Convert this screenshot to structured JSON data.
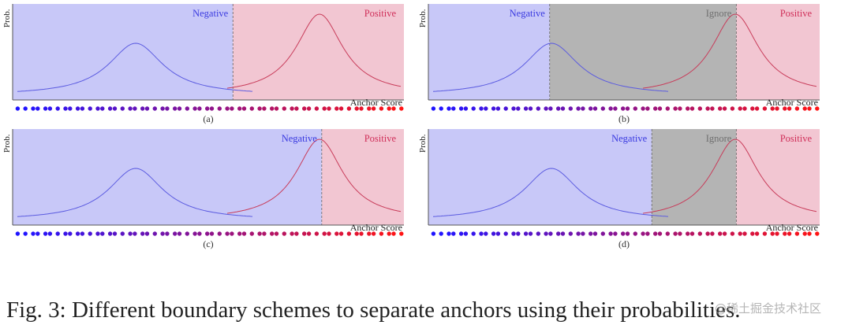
{
  "panels": [
    {
      "id": "a",
      "caption": "(a)",
      "negative": "Negative",
      "positive": "Positive",
      "ylabel": "Prob.",
      "xlabel": "Anchor Score",
      "boundary": 0.563
    },
    {
      "id": "b",
      "caption": "(b)",
      "negative": "Negative",
      "ignore": "Ignore",
      "positive": "Positive",
      "ylabel": "Prob.",
      "xlabel": "Anchor Score",
      "ignore_range": [
        0.31,
        0.787
      ]
    },
    {
      "id": "c",
      "caption": "(c)",
      "negative": "Negative",
      "positive": "Positive",
      "ylabel": "Prob.",
      "xlabel": "Anchor Score",
      "boundary": 0.79
    },
    {
      "id": "d",
      "caption": "(d)",
      "negative": "Negative",
      "ignore": "Ignore",
      "positive": "Positive",
      "ylabel": "Prob.",
      "xlabel": "Anchor Score",
      "ignore_range": [
        0.571,
        0.787
      ]
    }
  ],
  "colors": {
    "negative_bg": "#c8c8f8",
    "positive_bg": "#f2c6d2",
    "ignore_bg": "#b4b4b4",
    "negative_text": "#3a3ae0",
    "positive_text": "#d0305a",
    "ignore_text": "#707070",
    "neg_curve": "#5a5ae0",
    "pos_curve": "#c83c5a"
  },
  "caption": "Fig. 3: Different boundary schemes to separate anchors using their probabilities.",
  "watermark": "@稀土掘金技术社区"
}
